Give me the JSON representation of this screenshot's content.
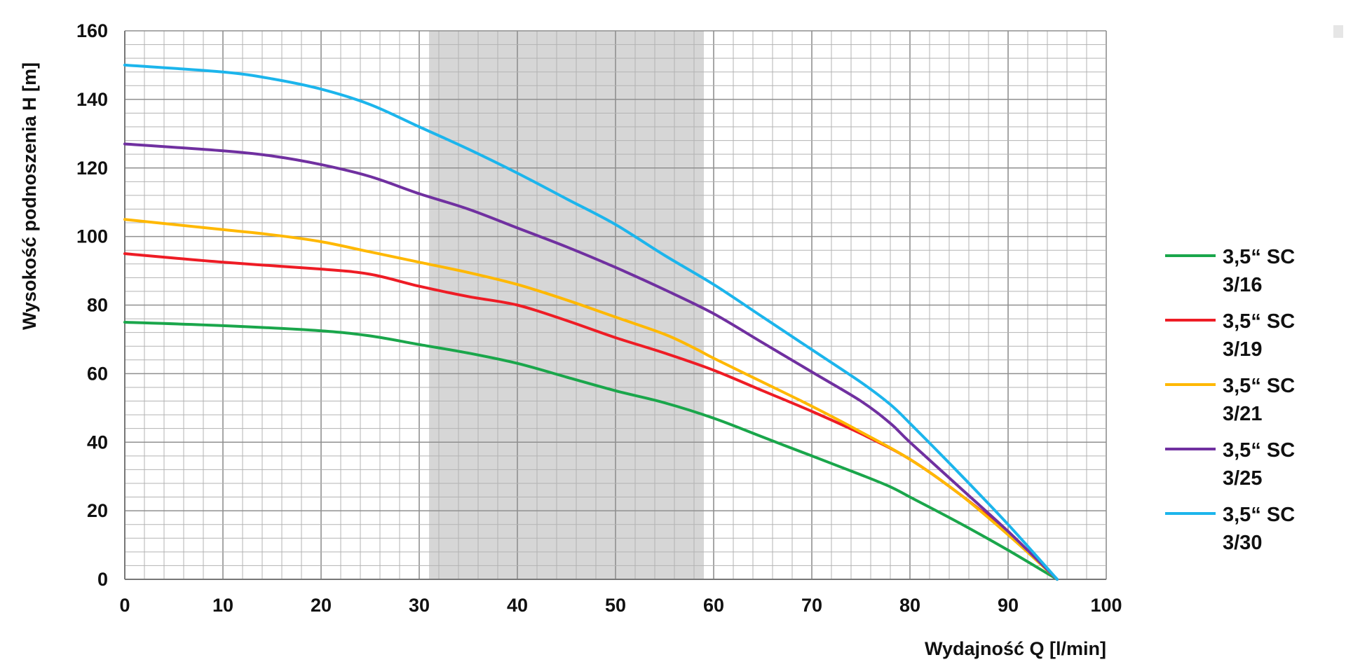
{
  "chart_data": {
    "type": "line",
    "xlabel": "Wydajność Q [l/min]",
    "ylabel": "Wysokość podnoszenia H [m]",
    "xlim": [
      0,
      100
    ],
    "ylim": [
      0,
      160
    ],
    "x_ticks": [
      0,
      10,
      20,
      30,
      40,
      50,
      60,
      70,
      80,
      90,
      100
    ],
    "y_ticks": [
      0,
      20,
      40,
      60,
      80,
      100,
      120,
      140,
      160
    ],
    "grid": true,
    "highlight_band": {
      "x_from": 31,
      "x_to": 59,
      "color": "#d6d6d6"
    },
    "legend_position": "right",
    "series": [
      {
        "name_lines": [
          "3,5“ SC",
          "3/16"
        ],
        "color": "#1aa64b",
        "points": [
          [
            0,
            75
          ],
          [
            10,
            74
          ],
          [
            20,
            72.5
          ],
          [
            25,
            71
          ],
          [
            30,
            68.5
          ],
          [
            35,
            66
          ],
          [
            40,
            63
          ],
          [
            45,
            59
          ],
          [
            50,
            55
          ],
          [
            55,
            51.5
          ],
          [
            60,
            47
          ],
          [
            65,
            41.5
          ],
          [
            70,
            36
          ],
          [
            75,
            30.5
          ],
          [
            78,
            27
          ],
          [
            80,
            24
          ],
          [
            85,
            16.5
          ],
          [
            90,
            8.5
          ],
          [
            95,
            0
          ]
        ]
      },
      {
        "name_lines": [
          "3,5“ SC",
          "3/19"
        ],
        "color": "#ee1c25",
        "points": [
          [
            0,
            95
          ],
          [
            10,
            92.5
          ],
          [
            20,
            90.5
          ],
          [
            25,
            89
          ],
          [
            30,
            85.5
          ],
          [
            35,
            82.5
          ],
          [
            40,
            80
          ],
          [
            45,
            75.5
          ],
          [
            50,
            70.5
          ],
          [
            55,
            66
          ],
          [
            60,
            61
          ],
          [
            65,
            55
          ],
          [
            70,
            49
          ],
          [
            75,
            42.5
          ],
          [
            80,
            35
          ],
          [
            85,
            25
          ],
          [
            90,
            13.5
          ],
          [
            95,
            0
          ]
        ]
      },
      {
        "name_lines": [
          "3,5“ SC",
          "3/21"
        ],
        "color": "#ffb800",
        "points": [
          [
            0,
            105
          ],
          [
            10,
            102
          ],
          [
            15,
            100.5
          ],
          [
            20,
            98.5
          ],
          [
            25,
            95.5
          ],
          [
            30,
            92.5
          ],
          [
            35,
            89.5
          ],
          [
            40,
            86
          ],
          [
            45,
            81.5
          ],
          [
            50,
            76.5
          ],
          [
            55,
            71.5
          ],
          [
            58,
            67.5
          ],
          [
            60,
            64.5
          ],
          [
            65,
            57.5
          ],
          [
            70,
            50.5
          ],
          [
            75,
            43
          ],
          [
            80,
            35
          ],
          [
            85,
            25
          ],
          [
            90,
            13
          ],
          [
            95,
            0
          ]
        ]
      },
      {
        "name_lines": [
          "3,5“ SC",
          "3/25"
        ],
        "color": "#7030a0",
        "points": [
          [
            0,
            127
          ],
          [
            10,
            125
          ],
          [
            15,
            123.5
          ],
          [
            20,
            121
          ],
          [
            25,
            117.5
          ],
          [
            30,
            112.5
          ],
          [
            35,
            108
          ],
          [
            40,
            102.5
          ],
          [
            45,
            97
          ],
          [
            50,
            91
          ],
          [
            55,
            84.5
          ],
          [
            60,
            77.5
          ],
          [
            65,
            69
          ],
          [
            70,
            60.5
          ],
          [
            75,
            52
          ],
          [
            78,
            45.5
          ],
          [
            80,
            40
          ],
          [
            85,
            27
          ],
          [
            90,
            14
          ],
          [
            95,
            0
          ]
        ]
      },
      {
        "name_lines": [
          "3,5“ SC",
          "3/30"
        ],
        "color": "#1cb5ec",
        "points": [
          [
            0,
            150
          ],
          [
            10,
            148
          ],
          [
            15,
            146
          ],
          [
            20,
            143
          ],
          [
            25,
            138.5
          ],
          [
            30,
            132
          ],
          [
            35,
            125.5
          ],
          [
            40,
            118.5
          ],
          [
            45,
            111
          ],
          [
            50,
            103.5
          ],
          [
            55,
            94.5
          ],
          [
            60,
            86
          ],
          [
            65,
            76.5
          ],
          [
            70,
            67
          ],
          [
            75,
            57.5
          ],
          [
            78,
            51
          ],
          [
            80,
            45.5
          ],
          [
            85,
            31
          ],
          [
            90,
            16
          ],
          [
            95,
            0
          ]
        ]
      }
    ]
  }
}
